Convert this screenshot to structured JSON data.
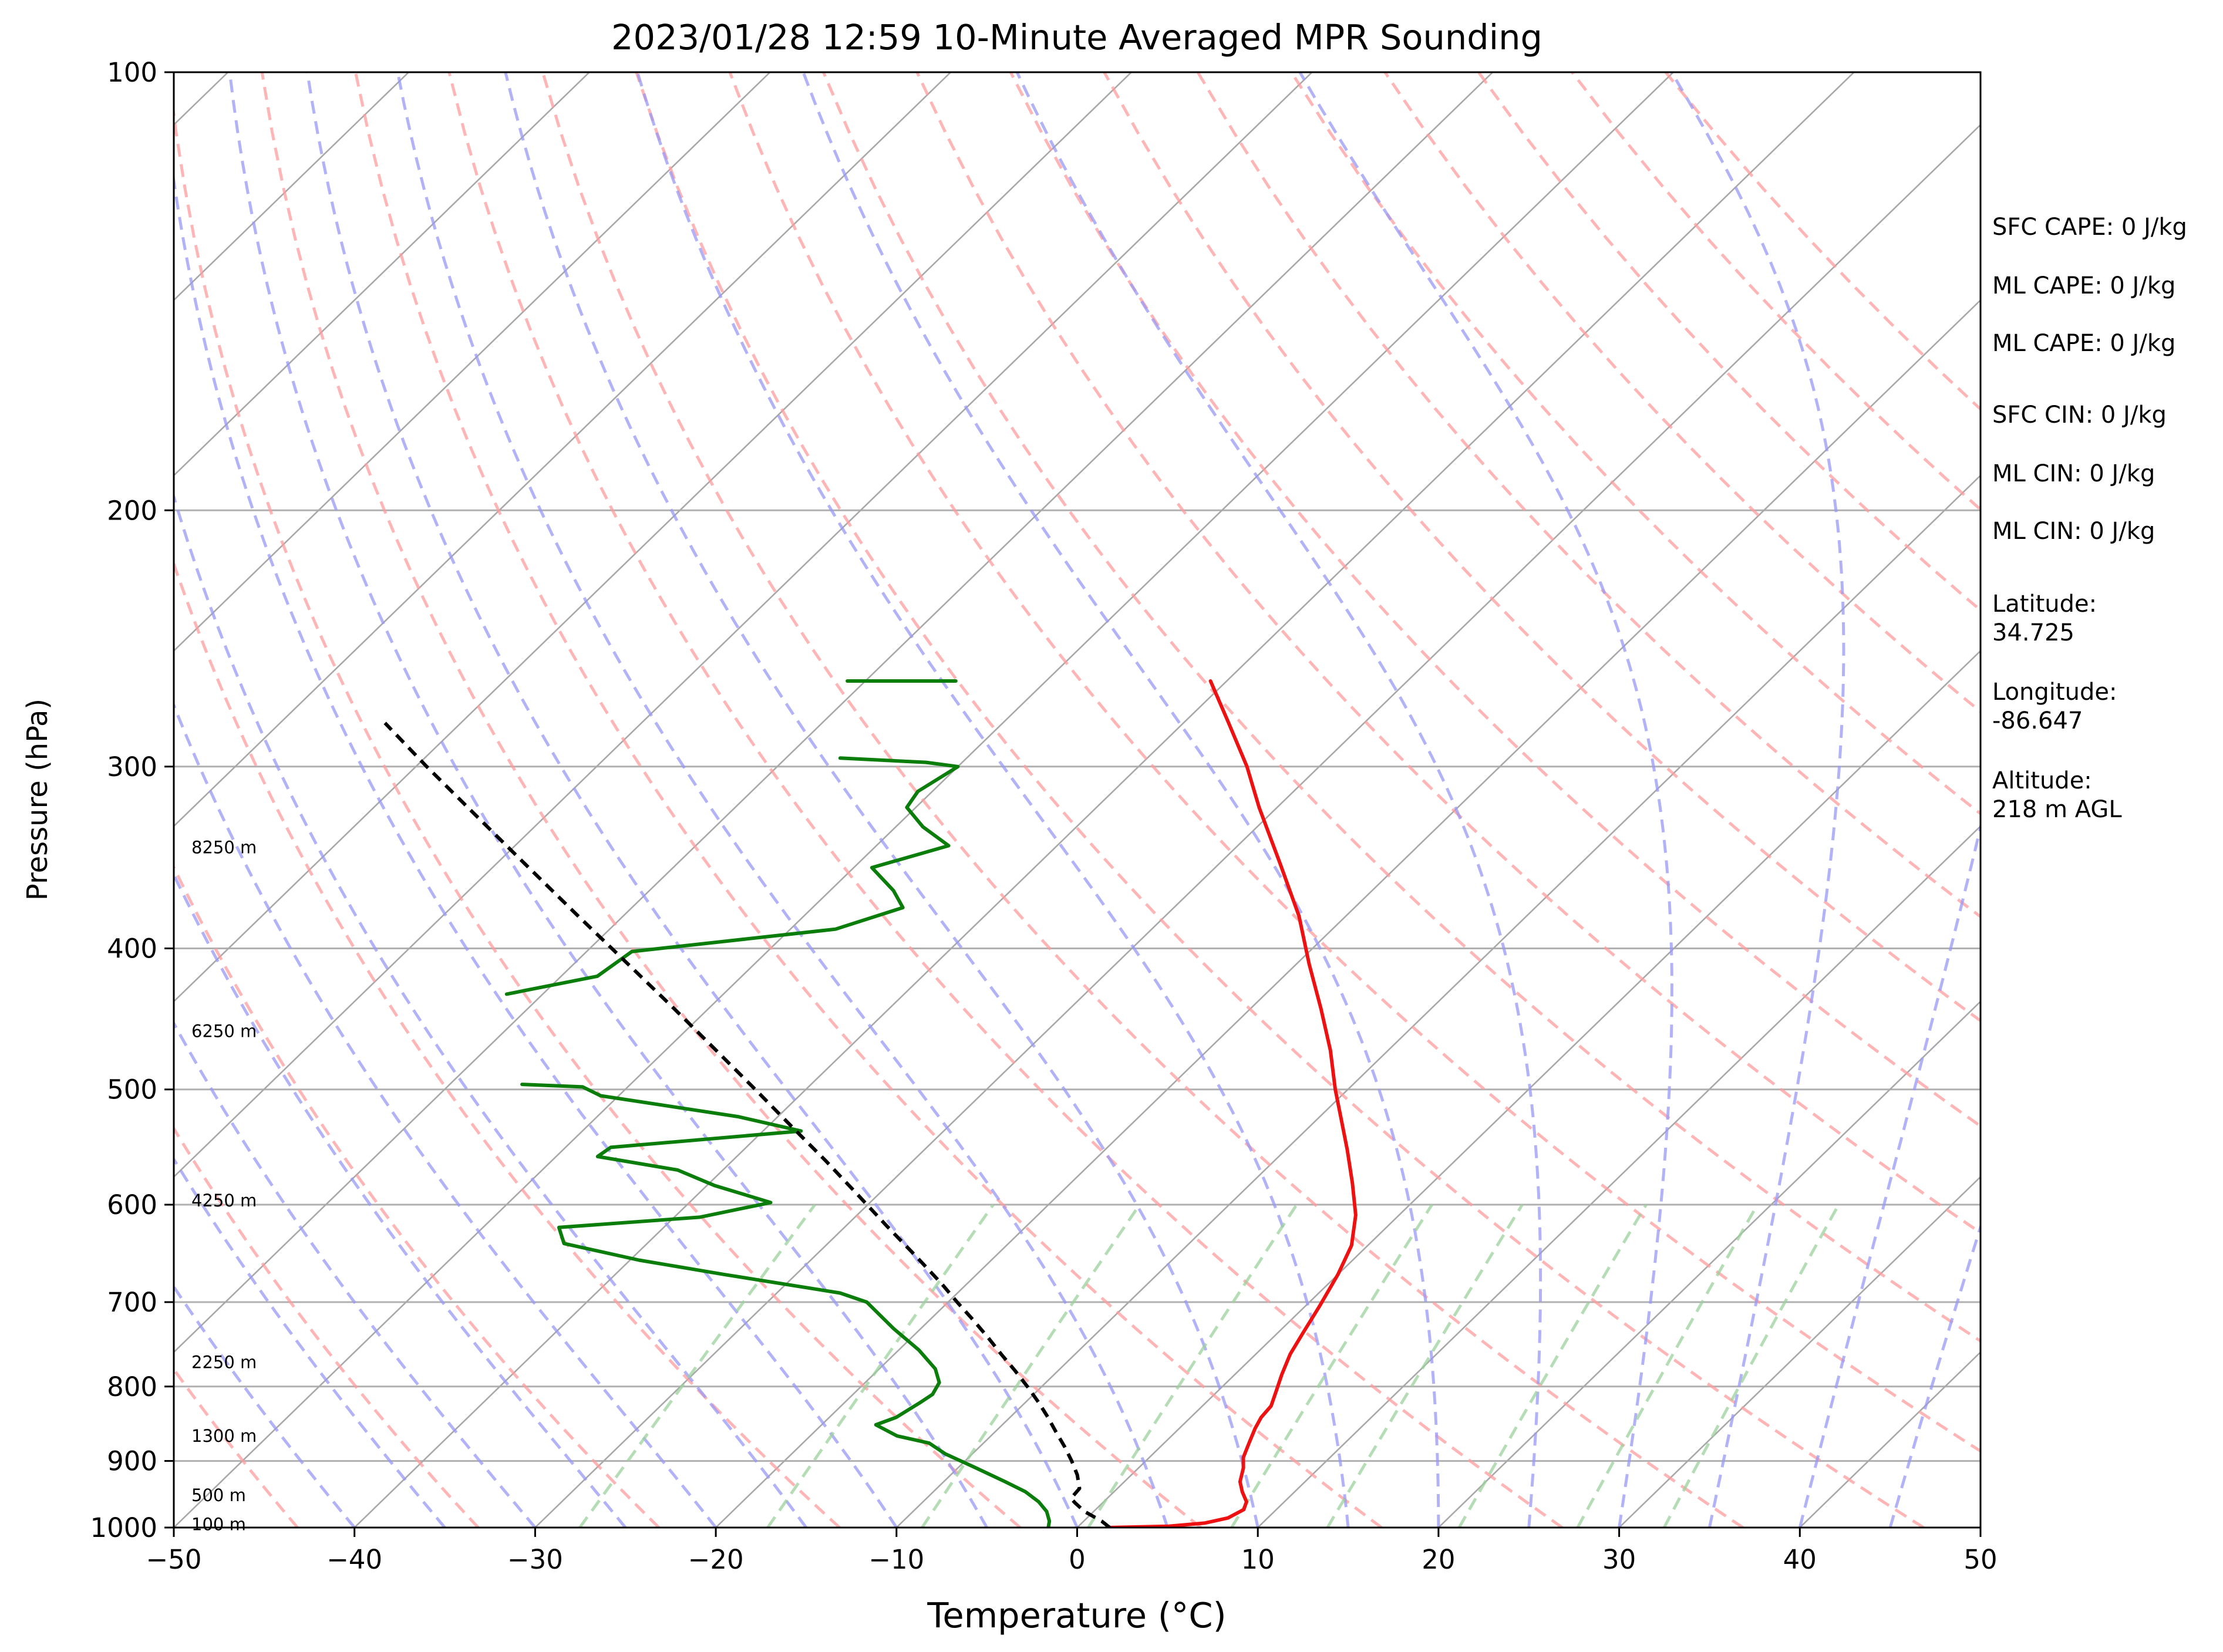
{
  "chart_data": {
    "type": "line",
    "subtype": "skew-T log-P diagram",
    "title": "2023/01/28 12:59 10-Minute Averaged MPR Sounding",
    "xlabel": "Temperature (°C)",
    "ylabel": "Pressure (hPa)",
    "xlim": [
      -50,
      50
    ],
    "ylim": [
      1000,
      100
    ],
    "y_scale": "log",
    "x_ticks": [
      "−50",
      "−40",
      "−30",
      "−20",
      "−10",
      "0",
      "10",
      "20",
      "30",
      "40",
      "50"
    ],
    "x_tick_values": [
      -50,
      -40,
      -30,
      -20,
      -10,
      0,
      10,
      20,
      30,
      40,
      50
    ],
    "y_ticks": [
      "100",
      "200",
      "300",
      "400",
      "500",
      "600",
      "700",
      "800",
      "900",
      "1000"
    ],
    "y_tick_values": [
      100,
      200,
      300,
      400,
      500,
      600,
      700,
      800,
      900,
      1000
    ],
    "grid": "horizontal at pressure ticks",
    "skew_deg_per_decade": 83,
    "reference_lines": {
      "isotherms": {
        "color": "#a8a8a8",
        "spacing_c": 10,
        "range_c": [
          -150,
          50
        ]
      },
      "dry_adiabats": {
        "color": "#ff9c9c",
        "style": "dashed",
        "theta_k": [
          230,
          240,
          250,
          260,
          270,
          280,
          290,
          300,
          310,
          320,
          330,
          340,
          350,
          360,
          370,
          380,
          390,
          400,
          410,
          420,
          430
        ]
      },
      "moist_adiabats": {
        "color": "#9898f5",
        "style": "dashed",
        "start_c": [
          -40,
          -35,
          -30,
          -25,
          -20,
          -15,
          -10,
          -5,
          0,
          5,
          10,
          15,
          20,
          25,
          30,
          35,
          40,
          45
        ]
      },
      "mixing_ratio_lines": {
        "color": "#9cd19c",
        "style": "dashed",
        "top_hpa": 600,
        "w_gkg": [
          0.4,
          1,
          2,
          4,
          7,
          10,
          16,
          24,
          32
        ]
      }
    },
    "series": [
      {
        "type": "temperature",
        "color": "#ee1111",
        "points": [
          [
            1000,
            1.8
          ],
          [
            998,
            5.0
          ],
          [
            993,
            6.8
          ],
          [
            985,
            7.8
          ],
          [
            972,
            8.2
          ],
          [
            960,
            7.9
          ],
          [
            945,
            7.1
          ],
          [
            930,
            6.4
          ],
          [
            910,
            5.8
          ],
          [
            895,
            5.2
          ],
          [
            875,
            4.7
          ],
          [
            855,
            4.2
          ],
          [
            840,
            3.9
          ],
          [
            825,
            3.8
          ],
          [
            808,
            3.3
          ],
          [
            785,
            2.6
          ],
          [
            760,
            1.9
          ],
          [
            735,
            1.4
          ],
          [
            705,
            0.8
          ],
          [
            670,
            0.0
          ],
          [
            640,
            -0.9
          ],
          [
            610,
            -2.4
          ],
          [
            580,
            -4.4
          ],
          [
            550,
            -6.6
          ],
          [
            525,
            -8.6
          ],
          [
            500,
            -10.7
          ],
          [
            470,
            -13.2
          ],
          [
            440,
            -16.1
          ],
          [
            410,
            -19.3
          ],
          [
            380,
            -22.6
          ],
          [
            350,
            -26.6
          ],
          [
            320,
            -31.0
          ],
          [
            300,
            -34.0
          ],
          [
            280,
            -37.5
          ],
          [
            262,
            -40.9
          ]
        ]
      },
      {
        "type": "dewpoint",
        "color": "#0b7d0b",
        "points": [
          [
            1000,
            -1.6
          ],
          [
            990,
            -1.9
          ],
          [
            975,
            -2.6
          ],
          [
            960,
            -3.6
          ],
          [
            945,
            -4.9
          ],
          [
            930,
            -6.6
          ],
          [
            910,
            -9.0
          ],
          [
            890,
            -11.5
          ],
          [
            875,
            -13.0
          ],
          [
            865,
            -15.2
          ],
          [
            850,
            -17.0
          ],
          [
            840,
            -16.3
          ],
          [
            820,
            -15.8
          ],
          [
            810,
            -15.6
          ],
          [
            795,
            -15.9
          ],
          [
            778,
            -16.9
          ],
          [
            755,
            -18.9
          ],
          [
            730,
            -21.5
          ],
          [
            700,
            -24.5
          ],
          [
            690,
            -26.5
          ],
          [
            670,
            -34.0
          ],
          [
            655,
            -39.5
          ],
          [
            638,
            -44.6
          ],
          [
            622,
            -45.8
          ],
          [
            612,
            -38.6
          ],
          [
            598,
            -35.5
          ],
          [
            582,
            -39.6
          ],
          [
            568,
            -42.5
          ],
          [
            556,
            -47.7
          ],
          [
            548,
            -47.5
          ],
          [
            534,
            -37.9
          ],
          [
            522,
            -42.2
          ],
          [
            505,
            -51.0
          ],
          [
            498,
            -52.5
          ],
          [
            496,
            -56.0
          ]
        ]
      },
      {
        "type": "dewpoint-upper",
        "color": "#0b7d0b",
        "points": [
          [
            430,
            -62.0
          ],
          [
            418,
            -58.0
          ],
          [
            402,
            -57.5
          ],
          [
            388,
            -47.5
          ],
          [
            375,
            -45.0
          ],
          [
            365,
            -46.5
          ],
          [
            352,
            -49.0
          ],
          [
            340,
            -46.0
          ],
          [
            330,
            -48.5
          ],
          [
            320,
            -50.5
          ],
          [
            312,
            -50.8
          ],
          [
            300,
            -50.0
          ],
          [
            298,
            -52.0
          ],
          [
            296,
            -57.0
          ]
        ]
      },
      {
        "type": "dewpoint-upper",
        "color": "#0b7d0b",
        "points": [
          [
            262,
            -55.0
          ],
          [
            262,
            -61.0
          ]
        ]
      },
      {
        "type": "parcel",
        "color": "#000000",
        "style": "dashed",
        "points": [
          [
            1000,
            1.8
          ],
          [
            990,
            1.0
          ],
          [
            975,
            -0.5
          ],
          [
            962,
            -1.5
          ],
          [
            955,
            -2.0
          ],
          [
            940,
            -2.1
          ],
          [
            920,
            -3.0
          ],
          [
            900,
            -4.1
          ],
          [
            880,
            -5.3
          ],
          [
            860,
            -6.6
          ],
          [
            840,
            -7.9
          ],
          [
            820,
            -9.3
          ],
          [
            800,
            -10.8
          ],
          [
            780,
            -12.4
          ],
          [
            760,
            -14.1
          ],
          [
            740,
            -15.8
          ],
          [
            720,
            -17.6
          ],
          [
            700,
            -19.5
          ],
          [
            680,
            -21.4
          ],
          [
            650,
            -24.5
          ],
          [
            620,
            -27.8
          ],
          [
            590,
            -31.2
          ],
          [
            560,
            -34.8
          ],
          [
            530,
            -38.7
          ],
          [
            500,
            -42.8
          ],
          [
            470,
            -47.2
          ],
          [
            440,
            -51.9
          ],
          [
            410,
            -57.0
          ],
          [
            380,
            -62.5
          ],
          [
            350,
            -68.4
          ],
          [
            320,
            -74.8
          ],
          [
            300,
            -79.4
          ],
          [
            280,
            -84.2
          ]
        ]
      }
    ],
    "height_labels": [
      {
        "text": "100 m",
        "p": 995
      },
      {
        "text": "500 m",
        "p": 950
      },
      {
        "text": "1300 m",
        "p": 865
      },
      {
        "text": "2250 m",
        "p": 770
      },
      {
        "text": "4250 m",
        "p": 596
      },
      {
        "text": "6250 m",
        "p": 456
      },
      {
        "text": "8250 m",
        "p": 341
      }
    ]
  },
  "info_panel": [
    "SFC CAPE: 0 J/kg",
    "ML CAPE: 0 J/kg",
    "ML CAPE: 0 J/kg",
    "SFC CIN: 0 J/kg",
    "ML CIN: 0 J/kg",
    "ML CIN: 0 J/kg",
    "Latitude:\n34.725",
    "Longitude:\n-86.647",
    "Altitude:\n218 m AGL"
  ]
}
